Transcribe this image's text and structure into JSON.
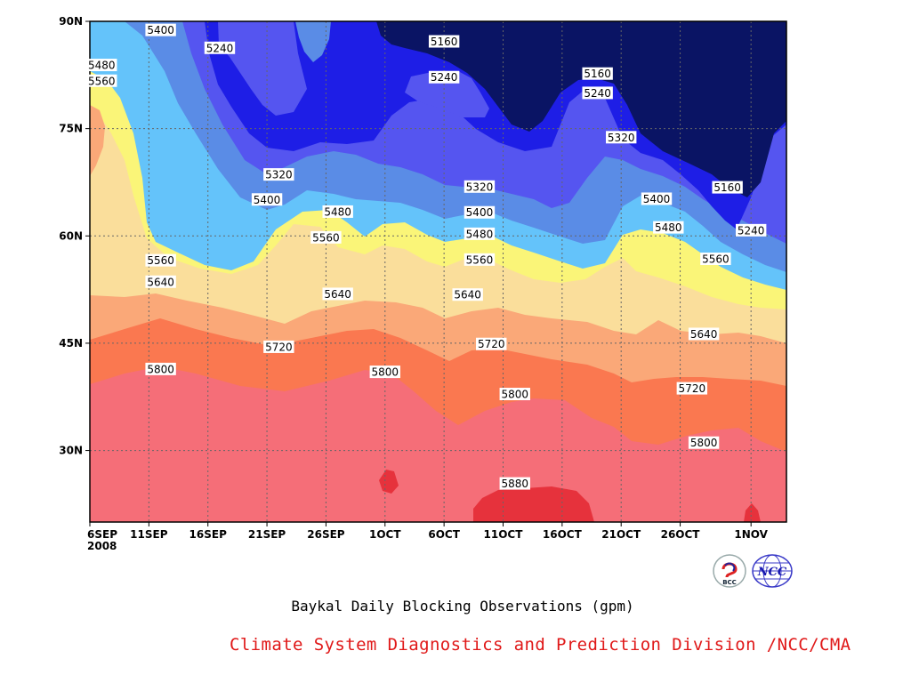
{
  "chart_data": {
    "type": "contour",
    "title": "Baykal Daily Blocking Observations (gpm)",
    "source": "Climate System Diagnostics and Prediction Division /NCC/CMA",
    "x_ticks": [
      "6SEP",
      "11SEP",
      "16SEP",
      "21SEP",
      "26SEP",
      "1OCT",
      "6OCT",
      "11OCT",
      "16OCT",
      "21OCT",
      "26OCT",
      "1NOV"
    ],
    "x_year": "2008",
    "x_range": [
      "2008-09-06",
      "2008-11-04"
    ],
    "y_ticks": [
      "30N",
      "45N",
      "60N",
      "75N",
      "90N"
    ],
    "y_range": [
      20,
      90
    ],
    "contour_levels": [
      5160,
      5240,
      5320,
      5400,
      5480,
      5560,
      5640,
      5720,
      5800,
      5880
    ],
    "fill_colors": [
      "#0a1464",
      "#1e1ee6",
      "#5555f0",
      "#5a8ce6",
      "#64c3fa",
      "#faf578",
      "#fade9b",
      "#faa878",
      "#fa7850",
      "#f56e78",
      "#e6323c"
    ],
    "contour_labels": [
      {
        "value": "5400",
        "date": "2008-09-12",
        "lat": 88.8
      },
      {
        "value": "5240",
        "date": "2008-09-17",
        "lat": 86.3
      },
      {
        "value": "5160",
        "date": "2008-10-06",
        "lat": 87.2
      },
      {
        "value": "5240",
        "date": "2008-10-06",
        "lat": 82.2
      },
      {
        "value": "5480",
        "date": "2008-09-07",
        "lat": 83.9
      },
      {
        "value": "5560",
        "date": "2008-09-07",
        "lat": 81.7
      },
      {
        "value": "5160",
        "date": "2008-10-19",
        "lat": 82.7
      },
      {
        "value": "5240",
        "date": "2008-10-19",
        "lat": 80.0
      },
      {
        "value": "5320",
        "date": "2008-10-21",
        "lat": 73.8
      },
      {
        "value": "5320",
        "date": "2008-09-22",
        "lat": 68.6
      },
      {
        "value": "5400",
        "date": "2008-09-21",
        "lat": 65.1
      },
      {
        "value": "5480",
        "date": "2008-09-27",
        "lat": 63.4
      },
      {
        "value": "5320",
        "date": "2008-10-09",
        "lat": 66.9
      },
      {
        "value": "5400",
        "date": "2008-10-09",
        "lat": 63.3
      },
      {
        "value": "5480",
        "date": "2008-10-09",
        "lat": 60.3
      },
      {
        "value": "5400",
        "date": "2008-10-24",
        "lat": 65.2
      },
      {
        "value": "5480",
        "date": "2008-10-25",
        "lat": 61.2
      },
      {
        "value": "5160",
        "date": "2008-10-30",
        "lat": 66.8
      },
      {
        "value": "5240",
        "date": "2008-11-01",
        "lat": 60.8
      },
      {
        "value": "5560",
        "date": "2008-09-12",
        "lat": 56.6
      },
      {
        "value": "5560",
        "date": "2008-09-26",
        "lat": 59.8
      },
      {
        "value": "5560",
        "date": "2008-10-09",
        "lat": 56.7
      },
      {
        "value": "5560",
        "date": "2008-10-29",
        "lat": 56.8
      },
      {
        "value": "5640",
        "date": "2008-09-12",
        "lat": 53.6
      },
      {
        "value": "5640",
        "date": "2008-09-27",
        "lat": 51.9
      },
      {
        "value": "5640",
        "date": "2008-10-08",
        "lat": 51.8
      },
      {
        "value": "5640",
        "date": "2008-10-28",
        "lat": 46.3
      },
      {
        "value": "5720",
        "date": "2008-09-22",
        "lat": 44.5
      },
      {
        "value": "5720",
        "date": "2008-10-10",
        "lat": 44.9
      },
      {
        "value": "5720",
        "date": "2008-10-27",
        "lat": 38.7
      },
      {
        "value": "5800",
        "date": "2008-09-12",
        "lat": 41.4
      },
      {
        "value": "5800",
        "date": "2008-10-01",
        "lat": 41.0
      },
      {
        "value": "5800",
        "date": "2008-10-12",
        "lat": 37.9
      },
      {
        "value": "5800",
        "date": "2008-10-28",
        "lat": 31.1
      },
      {
        "value": "5880",
        "date": "2008-10-12",
        "lat": 25.4
      }
    ]
  },
  "logos": {
    "left": {
      "text": "BCC",
      "icon": "bcc-logo-icon"
    },
    "right": {
      "text": "NCC",
      "icon": "ncc-globe-icon"
    }
  }
}
